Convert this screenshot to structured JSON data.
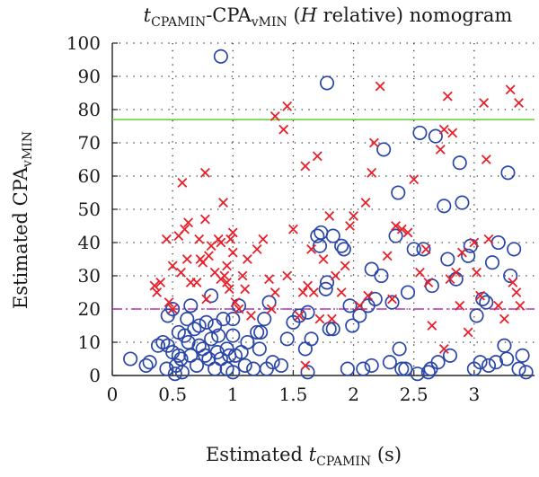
{
  "chart_data": {
    "type": "scatter",
    "title": {
      "base": "t",
      "sub1": "CPAMIN",
      "mid": "-CPA",
      "sub2": "vMIN",
      "open": " (",
      "italic": "H",
      "rest": " relative) nomogram"
    },
    "xlabel": {
      "main": "Estimated ",
      "italic": "t",
      "sub": "CPAMIN",
      "unit": " (s)"
    },
    "ylabel": {
      "main": "Estimated CPA",
      "sub": "vMIN"
    },
    "xlim": [
      0,
      3.5
    ],
    "ylim": [
      0,
      100
    ],
    "xticks": [
      "0",
      "0.5",
      "1",
      "1.5",
      "2",
      "2.5",
      "3"
    ],
    "yticks": [
      "0",
      "10",
      "20",
      "30",
      "40",
      "50",
      "60",
      "70",
      "80",
      "90",
      "100"
    ],
    "grid": "dotted",
    "reference_lines": [
      {
        "y": 77,
        "style": "solid",
        "color": "#66cc33"
      },
      {
        "y": 20,
        "style": "dashed",
        "color": "#b833b8"
      }
    ],
    "series": [
      {
        "marker": "circle",
        "color": "#2a46a8",
        "points": [
          [
            0.15,
            5
          ],
          [
            0.28,
            3
          ],
          [
            0.31,
            4
          ],
          [
            0.38,
            9
          ],
          [
            0.42,
            10
          ],
          [
            0.45,
            2
          ],
          [
            0.46,
            9
          ],
          [
            0.46,
            18
          ],
          [
            0.5,
            7
          ],
          [
            0.5,
            20
          ],
          [
            0.52,
            0.5
          ],
          [
            0.53,
            3
          ],
          [
            0.55,
            6
          ],
          [
            0.55,
            13
          ],
          [
            0.57,
            5
          ],
          [
            0.58,
            1
          ],
          [
            0.6,
            12
          ],
          [
            0.62,
            17
          ],
          [
            0.63,
            10
          ],
          [
            0.65,
            6
          ],
          [
            0.65,
            21
          ],
          [
            0.68,
            14
          ],
          [
            0.7,
            3
          ],
          [
            0.72,
            9
          ],
          [
            0.72,
            15
          ],
          [
            0.75,
            8
          ],
          [
            0.77,
            6
          ],
          [
            0.78,
            16
          ],
          [
            0.8,
            5
          ],
          [
            0.82,
            24
          ],
          [
            0.82,
            11
          ],
          [
            0.85,
            2
          ],
          [
            0.85,
            15
          ],
          [
            0.87,
            7
          ],
          [
            0.88,
            12
          ],
          [
            0.9,
            96
          ],
          [
            0.9,
            5
          ],
          [
            0.92,
            17
          ],
          [
            0.95,
            8
          ],
          [
            0.95,
            2
          ],
          [
            0.97,
            6
          ],
          [
            1.0,
            12
          ],
          [
            1.0,
            17
          ],
          [
            1.0,
            1
          ],
          [
            1.02,
            6
          ],
          [
            1.05,
            21
          ],
          [
            1.07,
            7
          ],
          [
            1.1,
            3
          ],
          [
            1.12,
            10
          ],
          [
            1.17,
            2
          ],
          [
            1.2,
            13
          ],
          [
            1.22,
            8
          ],
          [
            1.23,
            13
          ],
          [
            1.26,
            17
          ],
          [
            1.28,
            2
          ],
          [
            1.3,
            22
          ],
          [
            1.33,
            4
          ],
          [
            1.4,
            3
          ],
          [
            1.45,
            11
          ],
          [
            1.5,
            16
          ],
          [
            1.55,
            18
          ],
          [
            1.6,
            8
          ],
          [
            1.62,
            19
          ],
          [
            1.62,
            1
          ],
          [
            1.65,
            11
          ],
          [
            1.7,
            42
          ],
          [
            1.72,
            39
          ],
          [
            1.73,
            43
          ],
          [
            1.77,
            26
          ],
          [
            1.78,
            88
          ],
          [
            1.78,
            28
          ],
          [
            1.8,
            14
          ],
          [
            1.83,
            14
          ],
          [
            1.83,
            42
          ],
          [
            1.9,
            39
          ],
          [
            1.92,
            38
          ],
          [
            1.95,
            2
          ],
          [
            1.97,
            21
          ],
          [
            1.99,
            15
          ],
          [
            2.05,
            18
          ],
          [
            2.08,
            2
          ],
          [
            2.12,
            21
          ],
          [
            2.15,
            3
          ],
          [
            2.15,
            32
          ],
          [
            2.18,
            23
          ],
          [
            2.23,
            30
          ],
          [
            2.25,
            68
          ],
          [
            2.3,
            4
          ],
          [
            2.32,
            22
          ],
          [
            2.35,
            42
          ],
          [
            2.37,
            55
          ],
          [
            2.38,
            8
          ],
          [
            2.4,
            2
          ],
          [
            2.43,
            2
          ],
          [
            2.45,
            25
          ],
          [
            2.5,
            38
          ],
          [
            2.53,
            0.5
          ],
          [
            2.55,
            73
          ],
          [
            2.58,
            38
          ],
          [
            2.62,
            1
          ],
          [
            2.64,
            2
          ],
          [
            2.65,
            27
          ],
          [
            2.68,
            72
          ],
          [
            2.7,
            4
          ],
          [
            2.75,
            51
          ],
          [
            2.78,
            35
          ],
          [
            2.8,
            6
          ],
          [
            2.85,
            29
          ],
          [
            2.88,
            64
          ],
          [
            2.9,
            52
          ],
          [
            2.95,
            36
          ],
          [
            2.97,
            39
          ],
          [
            3.0,
            2
          ],
          [
            3.02,
            18
          ],
          [
            3.05,
            4
          ],
          [
            3.07,
            23
          ],
          [
            3.1,
            22
          ],
          [
            3.12,
            3
          ],
          [
            3.15,
            34
          ],
          [
            3.18,
            4
          ],
          [
            3.2,
            40
          ],
          [
            3.25,
            9
          ],
          [
            3.27,
            5
          ],
          [
            3.28,
            61
          ],
          [
            3.3,
            30
          ],
          [
            3.33,
            38
          ],
          [
            3.37,
            2
          ],
          [
            3.4,
            6
          ],
          [
            3.43,
            1
          ]
        ]
      },
      {
        "marker": "x",
        "color": "#e8202a",
        "points": [
          [
            0.35,
            27
          ],
          [
            0.37,
            25
          ],
          [
            0.4,
            28
          ],
          [
            0.45,
            41
          ],
          [
            0.47,
            22
          ],
          [
            0.5,
            20
          ],
          [
            0.5,
            33
          ],
          [
            0.55,
            42
          ],
          [
            0.57,
            31
          ],
          [
            0.58,
            58
          ],
          [
            0.6,
            44
          ],
          [
            0.62,
            35
          ],
          [
            0.63,
            46
          ],
          [
            0.65,
            28
          ],
          [
            0.7,
            28
          ],
          [
            0.72,
            41
          ],
          [
            0.73,
            35
          ],
          [
            0.75,
            34
          ],
          [
            0.77,
            61
          ],
          [
            0.77,
            47
          ],
          [
            0.78,
            23
          ],
          [
            0.8,
            36
          ],
          [
            0.82,
            39
          ],
          [
            0.85,
            31
          ],
          [
            0.88,
            41
          ],
          [
            0.9,
            29
          ],
          [
            0.9,
            40
          ],
          [
            0.92,
            52
          ],
          [
            0.93,
            30
          ],
          [
            0.95,
            33
          ],
          [
            0.95,
            28
          ],
          [
            0.97,
            26
          ],
          [
            0.98,
            41
          ],
          [
            1.0,
            37
          ],
          [
            1.0,
            43
          ],
          [
            1.02,
            22
          ],
          [
            1.05,
            20
          ],
          [
            1.08,
            30
          ],
          [
            1.1,
            26
          ],
          [
            1.12,
            35
          ],
          [
            1.15,
            18
          ],
          [
            1.2,
            38
          ],
          [
            1.25,
            41
          ],
          [
            1.3,
            29
          ],
          [
            1.32,
            20
          ],
          [
            1.35,
            78
          ],
          [
            1.35,
            25
          ],
          [
            1.42,
            74
          ],
          [
            1.45,
            81
          ],
          [
            1.45,
            30
          ],
          [
            1.5,
            44
          ],
          [
            1.55,
            18
          ],
          [
            1.58,
            25
          ],
          [
            1.6,
            63
          ],
          [
            1.6,
            3
          ],
          [
            1.62,
            27
          ],
          [
            1.65,
            38
          ],
          [
            1.67,
            25
          ],
          [
            1.7,
            66
          ],
          [
            1.72,
            17
          ],
          [
            1.75,
            35
          ],
          [
            1.8,
            48
          ],
          [
            1.82,
            17
          ],
          [
            1.85,
            30
          ],
          [
            1.9,
            25
          ],
          [
            1.93,
            33
          ],
          [
            1.97,
            45
          ],
          [
            2.0,
            48
          ],
          [
            2.05,
            21
          ],
          [
            2.1,
            52
          ],
          [
            2.12,
            24
          ],
          [
            2.15,
            61
          ],
          [
            2.17,
            70
          ],
          [
            2.22,
            87
          ],
          [
            2.28,
            36
          ],
          [
            2.32,
            23
          ],
          [
            2.35,
            45
          ],
          [
            2.4,
            44
          ],
          [
            2.45,
            43
          ],
          [
            2.5,
            59
          ],
          [
            2.55,
            31
          ],
          [
            2.6,
            38
          ],
          [
            2.62,
            28
          ],
          [
            2.65,
            15
          ],
          [
            2.72,
            68
          ],
          [
            2.75,
            8
          ],
          [
            2.75,
            74
          ],
          [
            2.78,
            84
          ],
          [
            2.8,
            29
          ],
          [
            2.82,
            73
          ],
          [
            2.85,
            31
          ],
          [
            2.88,
            21
          ],
          [
            2.9,
            37
          ],
          [
            2.95,
            13
          ],
          [
            3.0,
            40
          ],
          [
            3.02,
            31
          ],
          [
            3.05,
            24
          ],
          [
            3.08,
            82
          ],
          [
            3.1,
            65
          ],
          [
            3.12,
            41
          ],
          [
            3.2,
            21
          ],
          [
            3.25,
            17
          ],
          [
            3.3,
            86
          ],
          [
            3.32,
            28
          ],
          [
            3.35,
            25
          ],
          [
            3.37,
            82
          ],
          [
            3.38,
            21
          ]
        ]
      }
    ]
  }
}
